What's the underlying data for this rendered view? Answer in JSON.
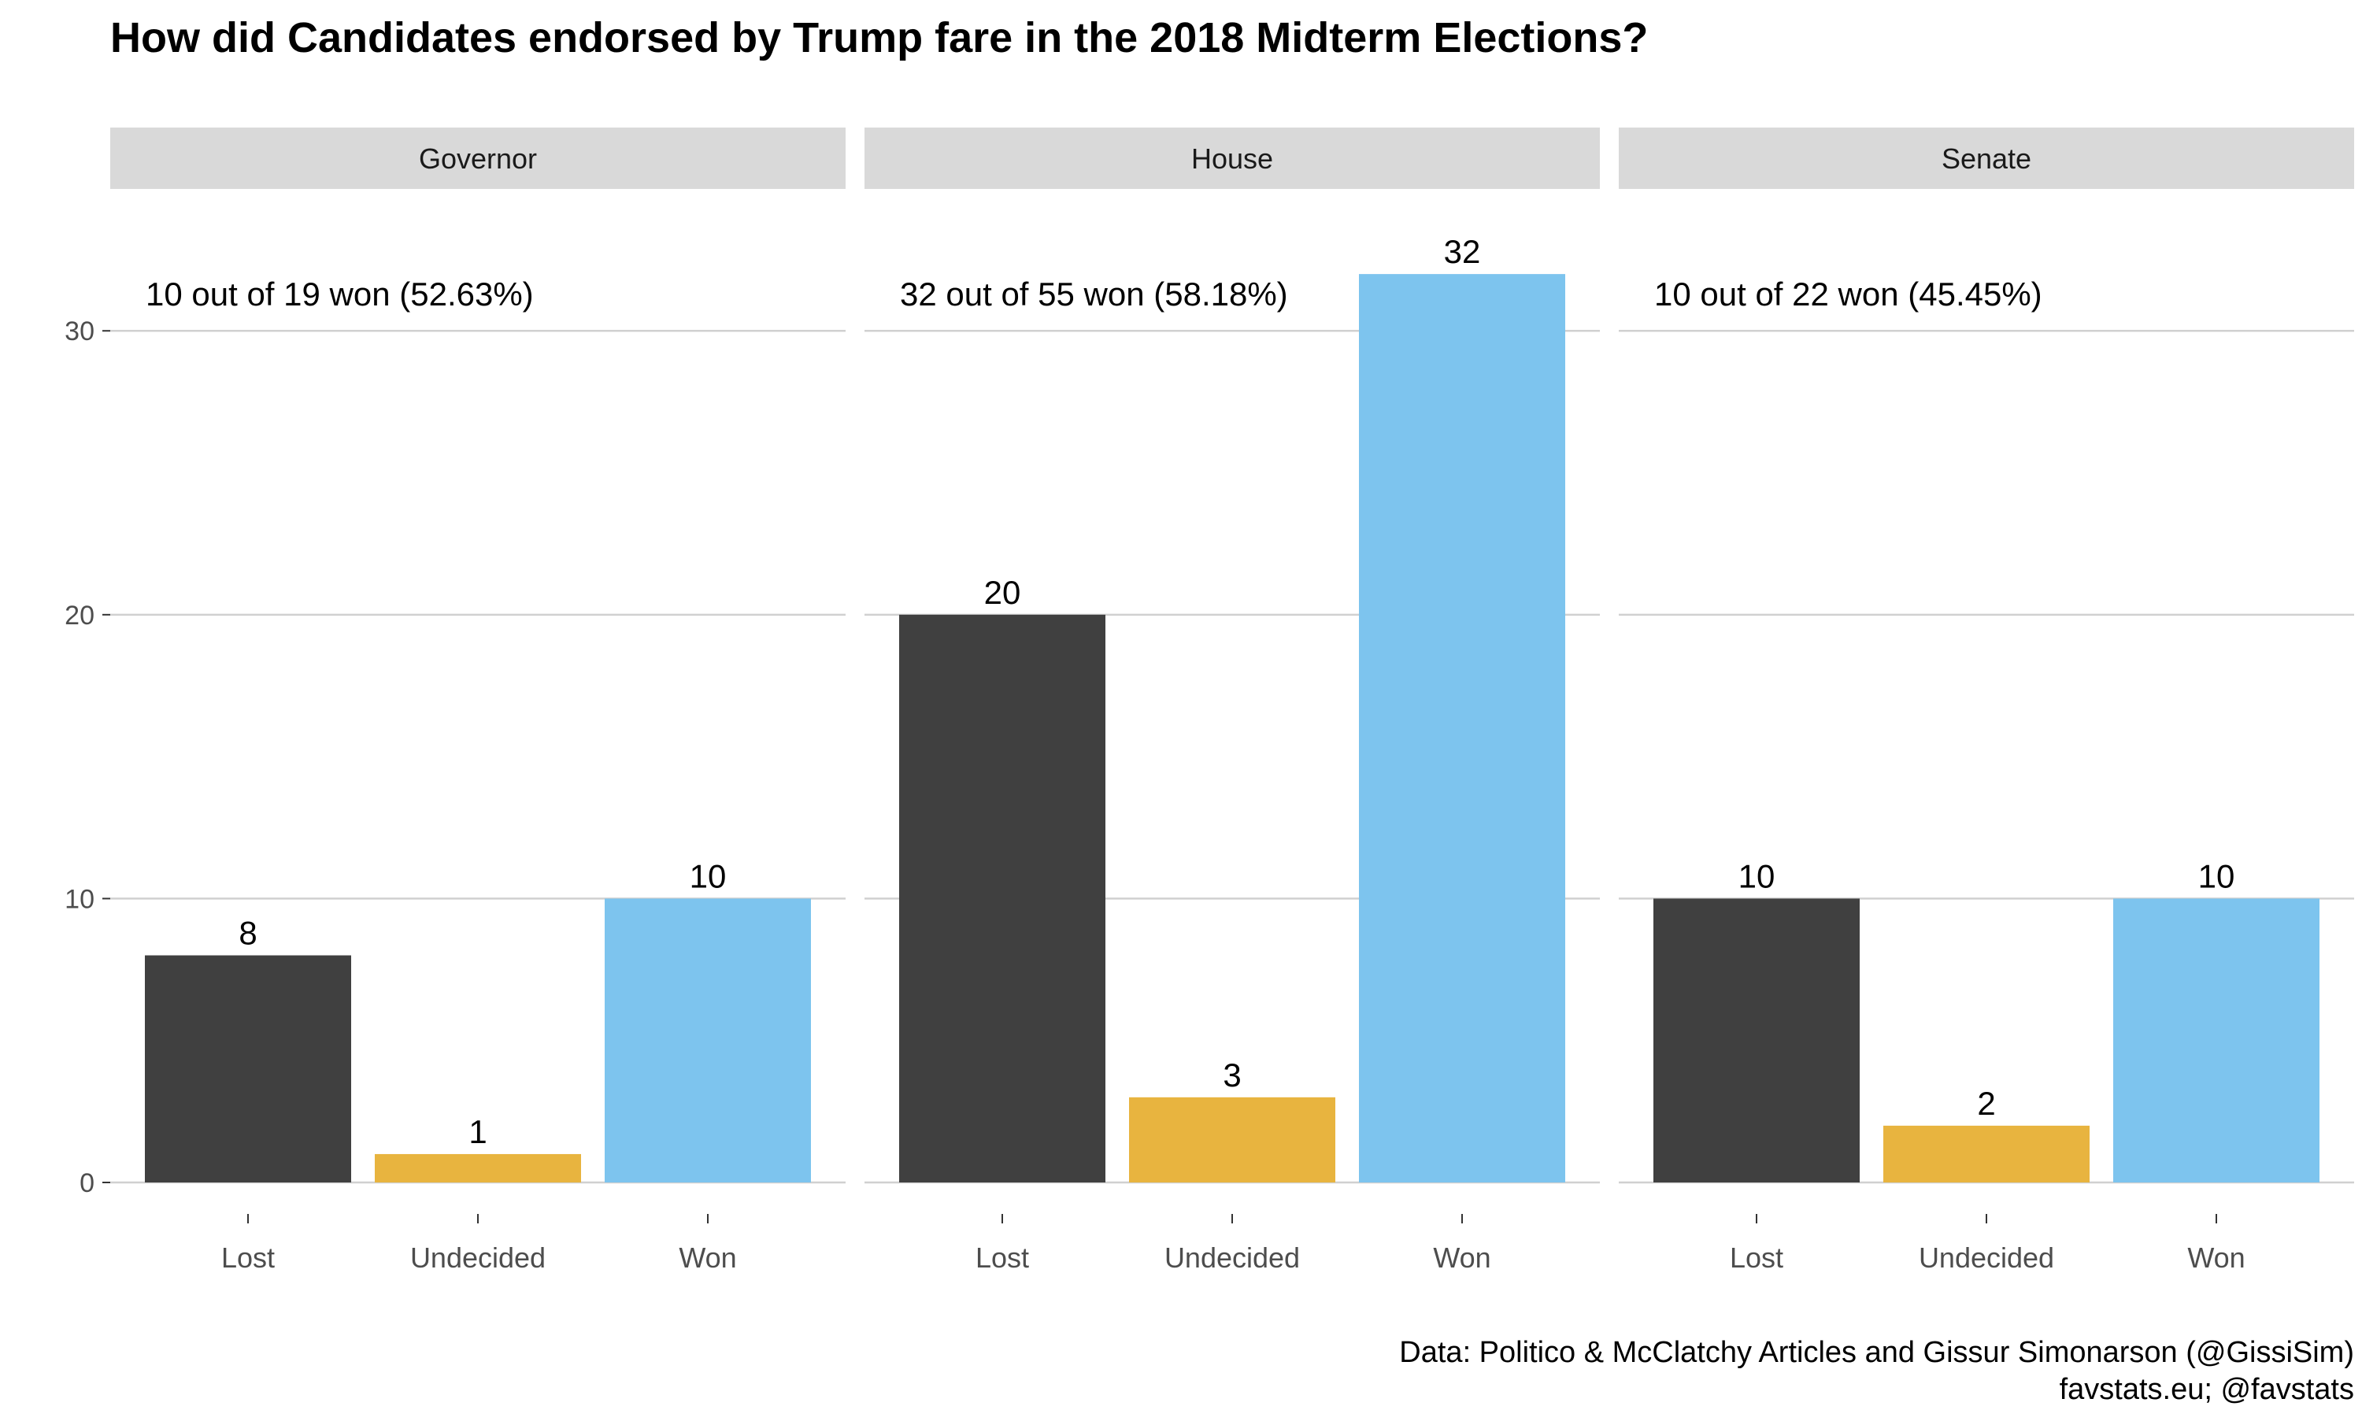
{
  "chart_data": {
    "type": "bar",
    "title": "How did Candidates endorsed by Trump fare in the 2018 Midterm Elections?",
    "xlabel": "",
    "ylabel": "",
    "ylim": [
      0,
      34
    ],
    "y_ticks": [
      0,
      10,
      20,
      30
    ],
    "categories": [
      "Lost",
      "Undecided",
      "Won"
    ],
    "grid": true,
    "legend": "none",
    "colors": {
      "Lost": "#404040",
      "Undecided": "#E8B43F",
      "Won": "#7DC4EE"
    },
    "panels": [
      {
        "name": "Governor",
        "values": [
          8,
          1,
          10
        ],
        "annotation": "10 out of 19 won (52.63%)"
      },
      {
        "name": "House",
        "values": [
          20,
          3,
          32
        ],
        "annotation": "32 out of 55 won (58.18%)"
      },
      {
        "name": "Senate",
        "values": [
          10,
          2,
          10
        ],
        "annotation": "10 out of 22 won (45.45%)"
      }
    ],
    "caption": [
      "Data: Politico & McClatchy Articles and Gissur Simonarson (@GissiSim)",
      "favstats.eu; @favstats"
    ]
  }
}
